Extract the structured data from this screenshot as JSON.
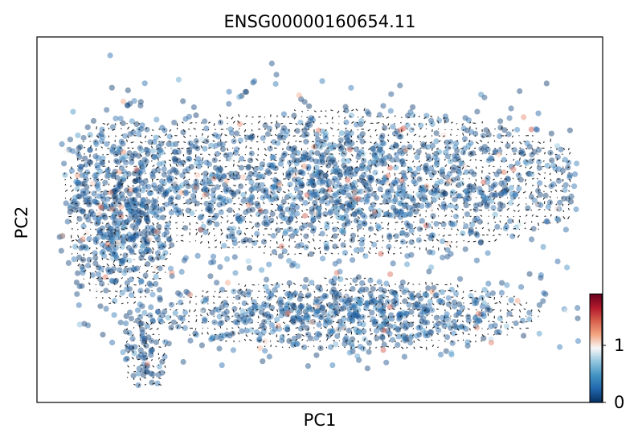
{
  "chart_data": {
    "type": "scatter",
    "title": "ENSG00000160654.11",
    "xlabel": "PC1",
    "ylabel": "PC2",
    "xlim": [
      0,
      1
    ],
    "ylim": [
      0,
      1
    ],
    "axis_ticks": false,
    "grid": false,
    "legend": "none",
    "overlay": "velocity-arrows",
    "colorbar": {
      "label": "",
      "colormap": "RdBu_r",
      "range": [
        0,
        1.9
      ],
      "ticks": [
        0,
        1
      ],
      "tick_labels": [
        "0",
        "1"
      ],
      "colors": [
        "#053061",
        "#2166ac",
        "#4393c3",
        "#92c5de",
        "#f7f7f7",
        "#f4a582",
        "#d6604d",
        "#b2182b",
        "#67001f"
      ]
    },
    "clusters": [
      {
        "region": "upper-band",
        "cx": 0.52,
        "cy": 0.6,
        "sx": 0.24,
        "sy": 0.1,
        "count": 1400,
        "expr_mean": 0.25
      },
      {
        "region": "left-mass",
        "cx": 0.15,
        "cy": 0.52,
        "sx": 0.05,
        "sy": 0.13,
        "count": 500,
        "expr_mean": 0.2
      },
      {
        "region": "lower-band",
        "cx": 0.55,
        "cy": 0.24,
        "sx": 0.17,
        "sy": 0.05,
        "count": 650,
        "expr_mean": 0.25
      },
      {
        "region": "bottom-tail",
        "cx": 0.19,
        "cy": 0.13,
        "sx": 0.02,
        "sy": 0.06,
        "count": 60,
        "expr_mean": 0.2
      }
    ]
  }
}
